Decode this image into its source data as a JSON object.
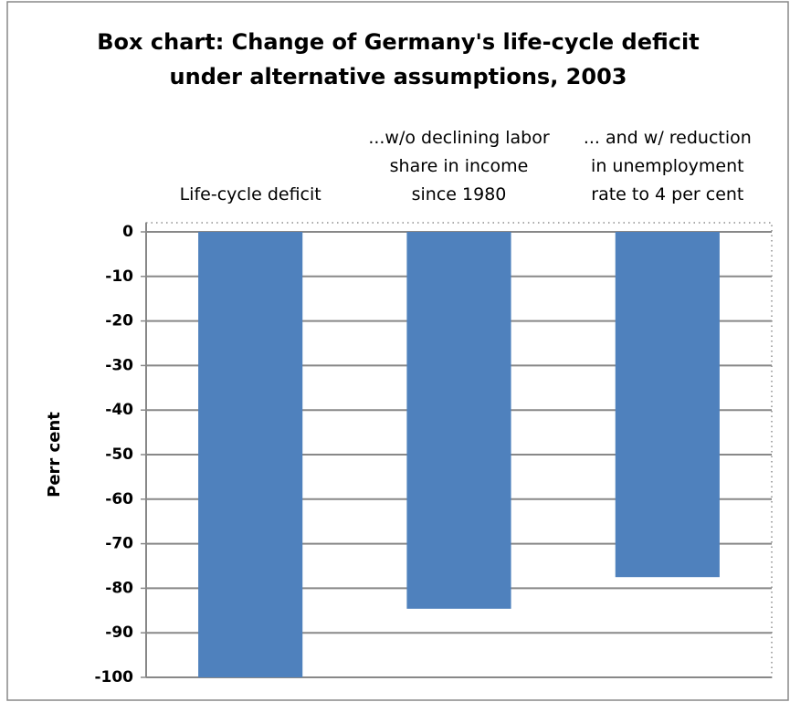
{
  "chart_data": {
    "type": "bar",
    "title": "Box chart: Change of Germany's life-cycle deficit\nunder alternative assumptions, 2003",
    "y_label": "Perr cent",
    "categories": [
      "Life-cycle deficit",
      "...w/o declining labor\nshare in income\nsince 1980",
      "... and w/ reduction\nin unemployment\nrate to 4 per cent"
    ],
    "values": [
      -100,
      -84.6,
      -77.5
    ],
    "color": "#4f81bd",
    "ylim": [
      -100,
      0
    ],
    "yticks": [
      0,
      -10,
      -20,
      -30,
      -40,
      -50,
      -60,
      -70,
      -80,
      -90,
      -100
    ],
    "grid": true
  }
}
